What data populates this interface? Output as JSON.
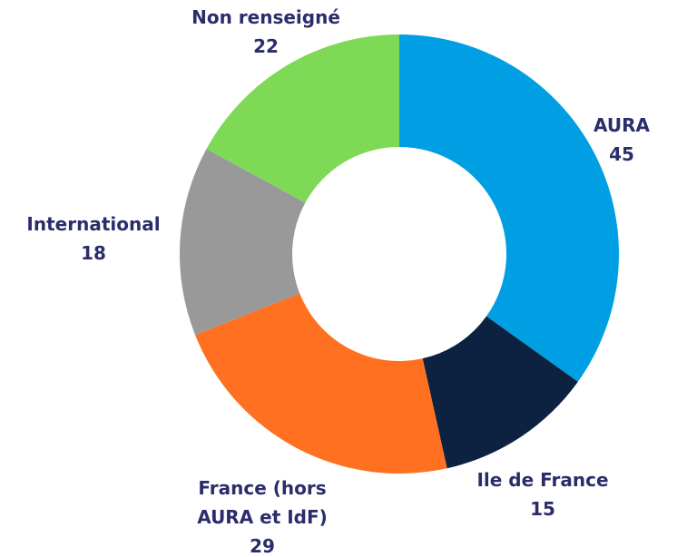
{
  "chart_data": {
    "type": "donut",
    "categories": [
      "AURA",
      "Ile de France",
      "France (hors AURA et IdF)",
      "International",
      "Non renseigné"
    ],
    "values": [
      45,
      15,
      29,
      18,
      22
    ],
    "colors": [
      "#009fe3",
      "#0d2240",
      "#ff7020",
      "#999999",
      "#7ed957"
    ]
  }
}
